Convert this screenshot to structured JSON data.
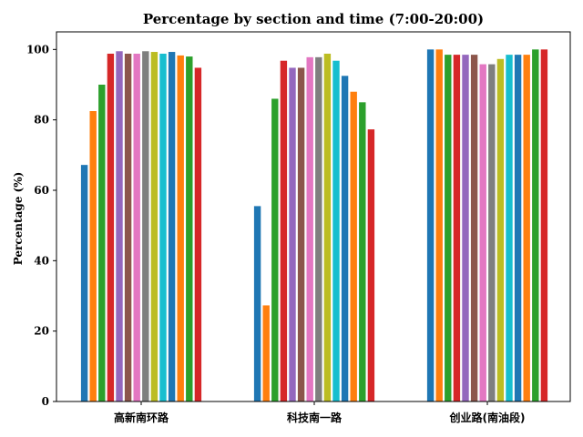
{
  "chart_data": {
    "type": "bar",
    "title": "Percentage by section and time (7:00-20:00)",
    "xlabel": "",
    "ylabel": "Percentage (%)",
    "ylim": [
      0,
      105
    ],
    "yticks": [
      0,
      20,
      40,
      60,
      80,
      100
    ],
    "grid": false,
    "legend": "none",
    "categories": [
      "高新南环路",
      "科技南一路",
      "创业路(南油段)"
    ],
    "bar_colors": [
      "#1f77b4",
      "#ff7f0e",
      "#2ca02c",
      "#d62728",
      "#9467bd",
      "#8c564b",
      "#e377c2",
      "#7f7f7f",
      "#bcbd22",
      "#17becf",
      "#1f77b4",
      "#ff7f0e",
      "#2ca02c",
      "#d62728"
    ],
    "series": [
      {
        "values": [
          67.2,
          55.5,
          100.0
        ]
      },
      {
        "values": [
          82.5,
          27.3,
          100.0
        ]
      },
      {
        "values": [
          90.0,
          86.0,
          98.5
        ]
      },
      {
        "values": [
          98.8,
          96.8,
          98.5
        ]
      },
      {
        "values": [
          99.5,
          94.8,
          98.5
        ]
      },
      {
        "values": [
          98.8,
          94.8,
          98.5
        ]
      },
      {
        "values": [
          98.8,
          97.8,
          95.8
        ]
      },
      {
        "values": [
          99.5,
          97.8,
          95.8
        ]
      },
      {
        "values": [
          99.3,
          98.8,
          97.3
        ]
      },
      {
        "values": [
          98.8,
          96.8,
          98.5
        ]
      },
      {
        "values": [
          99.3,
          92.5,
          98.5
        ]
      },
      {
        "values": [
          98.3,
          88.0,
          98.5
        ]
      },
      {
        "values": [
          98.0,
          85.0,
          100.0
        ]
      },
      {
        "values": [
          94.8,
          77.3,
          100.0
        ]
      }
    ]
  }
}
